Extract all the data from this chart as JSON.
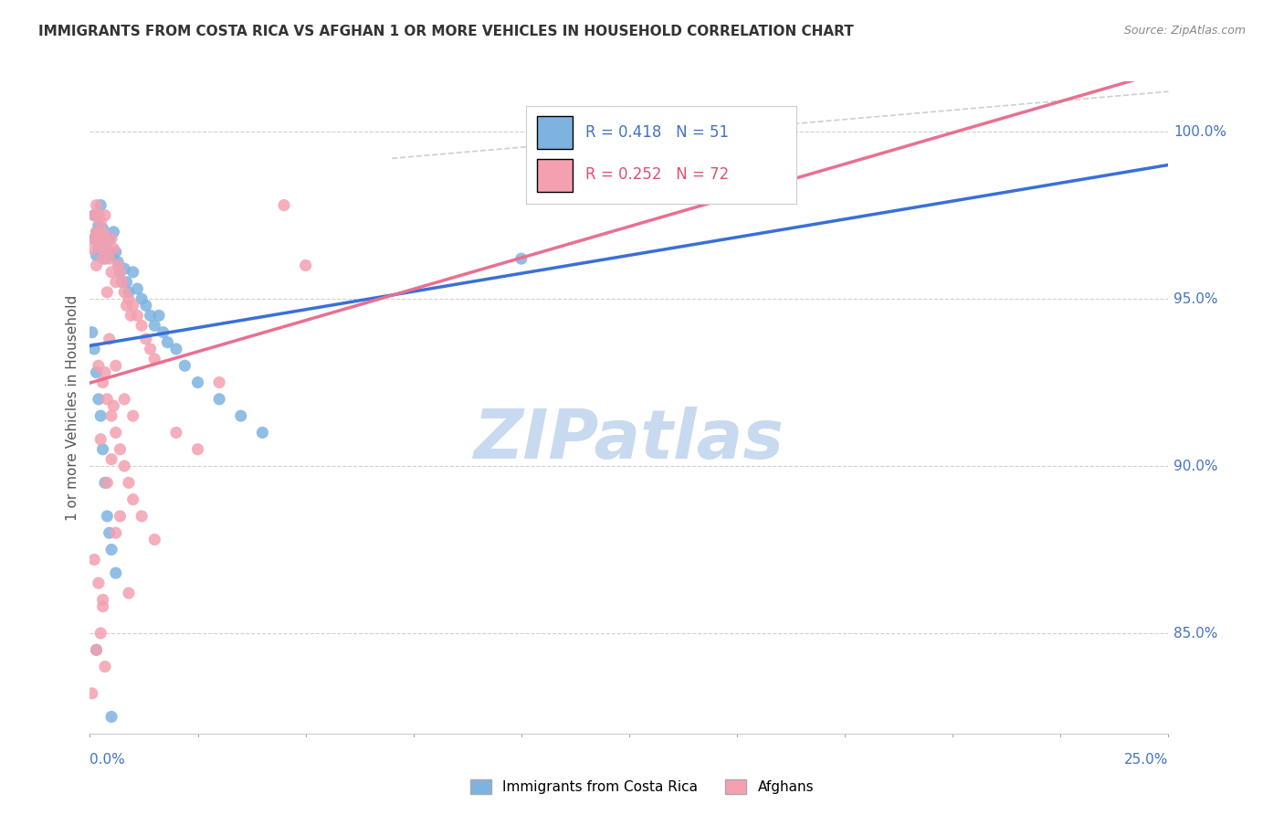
{
  "title": "IMMIGRANTS FROM COSTA RICA VS AFGHAN 1 OR MORE VEHICLES IN HOUSEHOLD CORRELATION CHART",
  "source": "Source: ZipAtlas.com",
  "ylabel": "1 or more Vehicles in Household",
  "xmin": 0.0,
  "xmax": 25.0,
  "ymin": 82.0,
  "ymax": 101.5,
  "blue_color": "#7eb3e0",
  "pink_color": "#f4a0b0",
  "line_blue": "#3a6fd8",
  "line_pink": "#e87090",
  "watermark_color": "#c8daf0",
  "cr_points": [
    [
      0.1,
      97.5
    ],
    [
      0.1,
      96.8
    ],
    [
      0.15,
      97.0
    ],
    [
      0.15,
      96.3
    ],
    [
      0.2,
      97.2
    ],
    [
      0.2,
      96.5
    ],
    [
      0.25,
      97.8
    ],
    [
      0.3,
      97.1
    ],
    [
      0.35,
      96.8
    ],
    [
      0.35,
      96.2
    ],
    [
      0.4,
      96.5
    ],
    [
      0.45,
      96.8
    ],
    [
      0.5,
      96.3
    ],
    [
      0.55,
      97.0
    ],
    [
      0.6,
      96.4
    ],
    [
      0.65,
      96.1
    ],
    [
      0.7,
      95.8
    ],
    [
      0.75,
      95.5
    ],
    [
      0.8,
      95.9
    ],
    [
      0.85,
      95.5
    ],
    [
      0.9,
      95.2
    ],
    [
      1.0,
      95.8
    ],
    [
      1.1,
      95.3
    ],
    [
      1.2,
      95.0
    ],
    [
      1.3,
      94.8
    ],
    [
      1.4,
      94.5
    ],
    [
      1.5,
      94.2
    ],
    [
      1.6,
      94.5
    ],
    [
      1.7,
      94.0
    ],
    [
      1.8,
      93.7
    ],
    [
      2.0,
      93.5
    ],
    [
      2.2,
      93.0
    ],
    [
      2.5,
      92.5
    ],
    [
      3.0,
      92.0
    ],
    [
      3.5,
      91.5
    ],
    [
      4.0,
      91.0
    ],
    [
      0.05,
      94.0
    ],
    [
      0.1,
      93.5
    ],
    [
      0.15,
      92.8
    ],
    [
      0.2,
      92.0
    ],
    [
      0.25,
      91.5
    ],
    [
      0.3,
      90.5
    ],
    [
      0.35,
      89.5
    ],
    [
      0.4,
      88.5
    ],
    [
      0.5,
      87.5
    ],
    [
      0.6,
      86.8
    ],
    [
      0.15,
      84.5
    ],
    [
      0.45,
      88.0
    ],
    [
      12.0,
      98.3
    ],
    [
      0.5,
      82.5
    ],
    [
      10.0,
      96.2
    ]
  ],
  "af_points": [
    [
      0.05,
      96.5
    ],
    [
      0.1,
      97.5
    ],
    [
      0.1,
      96.8
    ],
    [
      0.15,
      97.8
    ],
    [
      0.15,
      97.0
    ],
    [
      0.2,
      97.5
    ],
    [
      0.2,
      96.8
    ],
    [
      0.25,
      97.3
    ],
    [
      0.25,
      96.5
    ],
    [
      0.3,
      97.0
    ],
    [
      0.3,
      96.2
    ],
    [
      0.35,
      97.5
    ],
    [
      0.35,
      96.8
    ],
    [
      0.4,
      96.5
    ],
    [
      0.45,
      96.2
    ],
    [
      0.5,
      95.8
    ],
    [
      0.5,
      96.8
    ],
    [
      0.55,
      96.5
    ],
    [
      0.6,
      95.5
    ],
    [
      0.65,
      96.0
    ],
    [
      0.7,
      95.8
    ],
    [
      0.75,
      95.5
    ],
    [
      0.8,
      95.2
    ],
    [
      0.85,
      94.8
    ],
    [
      0.9,
      95.0
    ],
    [
      0.95,
      94.5
    ],
    [
      1.0,
      94.8
    ],
    [
      1.1,
      94.5
    ],
    [
      1.2,
      94.2
    ],
    [
      1.3,
      93.8
    ],
    [
      1.4,
      93.5
    ],
    [
      1.5,
      93.2
    ],
    [
      0.2,
      93.0
    ],
    [
      0.3,
      92.5
    ],
    [
      0.4,
      92.0
    ],
    [
      0.5,
      91.5
    ],
    [
      0.6,
      91.0
    ],
    [
      0.7,
      90.5
    ],
    [
      0.8,
      90.0
    ],
    [
      0.9,
      89.5
    ],
    [
      1.0,
      89.0
    ],
    [
      1.2,
      88.5
    ],
    [
      1.5,
      87.8
    ],
    [
      0.1,
      87.2
    ],
    [
      0.2,
      86.5
    ],
    [
      0.3,
      85.8
    ],
    [
      0.05,
      83.2
    ],
    [
      0.15,
      84.5
    ],
    [
      0.25,
      85.0
    ],
    [
      0.35,
      84.0
    ],
    [
      4.5,
      97.8
    ],
    [
      0.4,
      95.2
    ],
    [
      0.6,
      93.0
    ],
    [
      0.8,
      92.0
    ],
    [
      1.0,
      91.5
    ],
    [
      0.7,
      88.5
    ],
    [
      0.9,
      86.2
    ],
    [
      2.0,
      91.0
    ],
    [
      2.5,
      90.5
    ],
    [
      3.0,
      92.5
    ],
    [
      0.5,
      90.2
    ],
    [
      0.4,
      89.5
    ],
    [
      0.6,
      88.0
    ],
    [
      0.3,
      86.0
    ],
    [
      5.0,
      96.0
    ],
    [
      0.15,
      96.0
    ],
    [
      0.45,
      93.8
    ],
    [
      0.35,
      92.8
    ],
    [
      0.55,
      91.8
    ],
    [
      0.25,
      90.8
    ]
  ]
}
